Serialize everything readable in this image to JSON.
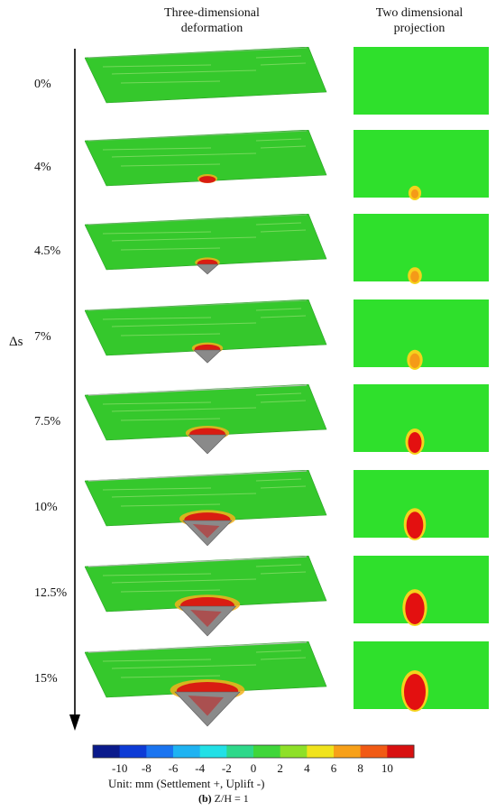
{
  "headers": {
    "three_d": [
      "Three-dimensional",
      "deformation"
    ],
    "two_d": [
      "Two dimensional",
      "projection"
    ]
  },
  "axis_label": "Δs",
  "rows": [
    {
      "label": "0%",
      "level": 0.0
    },
    {
      "label": "4%",
      "level": 0.12
    },
    {
      "label": "4.5%",
      "level": 0.2
    },
    {
      "label": "7%",
      "level": 0.3
    },
    {
      "label": "7.5%",
      "level": 0.5
    },
    {
      "label": "10%",
      "level": 0.7
    },
    {
      "label": "12.5%",
      "level": 0.85
    },
    {
      "label": "15%",
      "level": 1.0
    }
  ],
  "colorbar": {
    "ticks": [
      "-10",
      "-8",
      "-6",
      "-4",
      "-2",
      "0",
      "2",
      "4",
      "6",
      "8",
      "10"
    ],
    "colors": [
      "#0a1a8c",
      "#0d3bd6",
      "#1a74f0",
      "#1fb3f2",
      "#22e0e6",
      "#2ed88a",
      "#3fd63a",
      "#8ee028",
      "#f0e31c",
      "#f7a018",
      "#f15a14",
      "#d81010"
    ],
    "unit": "Unit: mm  (Settlement +, Uplift -)"
  },
  "caption": {
    "part": "(b)",
    "text": "Z/H = 1"
  }
}
